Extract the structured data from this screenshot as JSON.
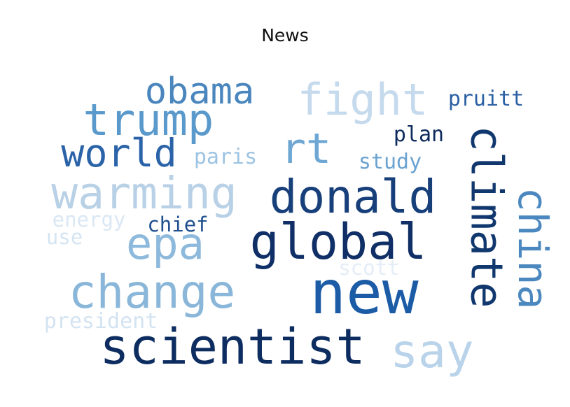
{
  "chart_data": {
    "type": "wordcloud",
    "title": "News",
    "colormap": "Blues",
    "words": [
      {
        "text": "new",
        "weight": 1.0,
        "color": "#1c5ca6",
        "orientation": "horizontal"
      },
      {
        "text": "climate",
        "weight": 0.98,
        "color": "#11386e",
        "orientation": "vertical"
      },
      {
        "text": "scientist",
        "weight": 0.92,
        "color": "#0d2d61",
        "orientation": "horizontal"
      },
      {
        "text": "global",
        "weight": 0.9,
        "color": "#0f2f66",
        "orientation": "horizontal"
      },
      {
        "text": "donald",
        "weight": 0.85,
        "color": "#173f7a",
        "orientation": "horizontal"
      },
      {
        "text": "change",
        "weight": 0.82,
        "color": "#8ab7d9",
        "orientation": "horizontal"
      },
      {
        "text": "china",
        "weight": 0.8,
        "color": "#4b88bf",
        "orientation": "vertical"
      },
      {
        "text": "say",
        "weight": 0.75,
        "color": "#b9d3ea",
        "orientation": "horizontal"
      },
      {
        "text": "warming",
        "weight": 0.72,
        "color": "#b9d1e6",
        "orientation": "horizontal"
      },
      {
        "text": "epa",
        "weight": 0.7,
        "color": "#8db9dc",
        "orientation": "horizontal"
      },
      {
        "text": "trump",
        "weight": 0.68,
        "color": "#5a99cb",
        "orientation": "horizontal"
      },
      {
        "text": "fight",
        "weight": 0.68,
        "color": "#c6daee",
        "orientation": "horizontal"
      },
      {
        "text": "world",
        "weight": 0.62,
        "color": "#2b63a8",
        "orientation": "horizontal"
      },
      {
        "text": "rt",
        "weight": 0.6,
        "color": "#6ea7d4",
        "orientation": "horizontal"
      },
      {
        "text": "obama",
        "weight": 0.52,
        "color": "#4a86bd",
        "orientation": "horizontal"
      },
      {
        "text": "pruitt",
        "weight": 0.34,
        "color": "#2b60a3",
        "orientation": "horizontal"
      },
      {
        "text": "plan",
        "weight": 0.32,
        "color": "#0d2a5c",
        "orientation": "horizontal"
      },
      {
        "text": "study",
        "weight": 0.3,
        "color": "#6ba3d0",
        "orientation": "horizontal"
      },
      {
        "text": "paris",
        "weight": 0.3,
        "color": "#9ec4e2",
        "orientation": "horizontal"
      },
      {
        "text": "chief",
        "weight": 0.28,
        "color": "#1f4f8e",
        "orientation": "horizontal"
      },
      {
        "text": "energy",
        "weight": 0.28,
        "color": "#dae7f4",
        "orientation": "horizontal"
      },
      {
        "text": "use",
        "weight": 0.28,
        "color": "#d4e4f2",
        "orientation": "horizontal"
      },
      {
        "text": "scott",
        "weight": 0.28,
        "color": "#e4edf7",
        "orientation": "horizontal"
      },
      {
        "text": "president",
        "weight": 0.28,
        "color": "#d3e3f1",
        "orientation": "horizontal"
      }
    ]
  }
}
